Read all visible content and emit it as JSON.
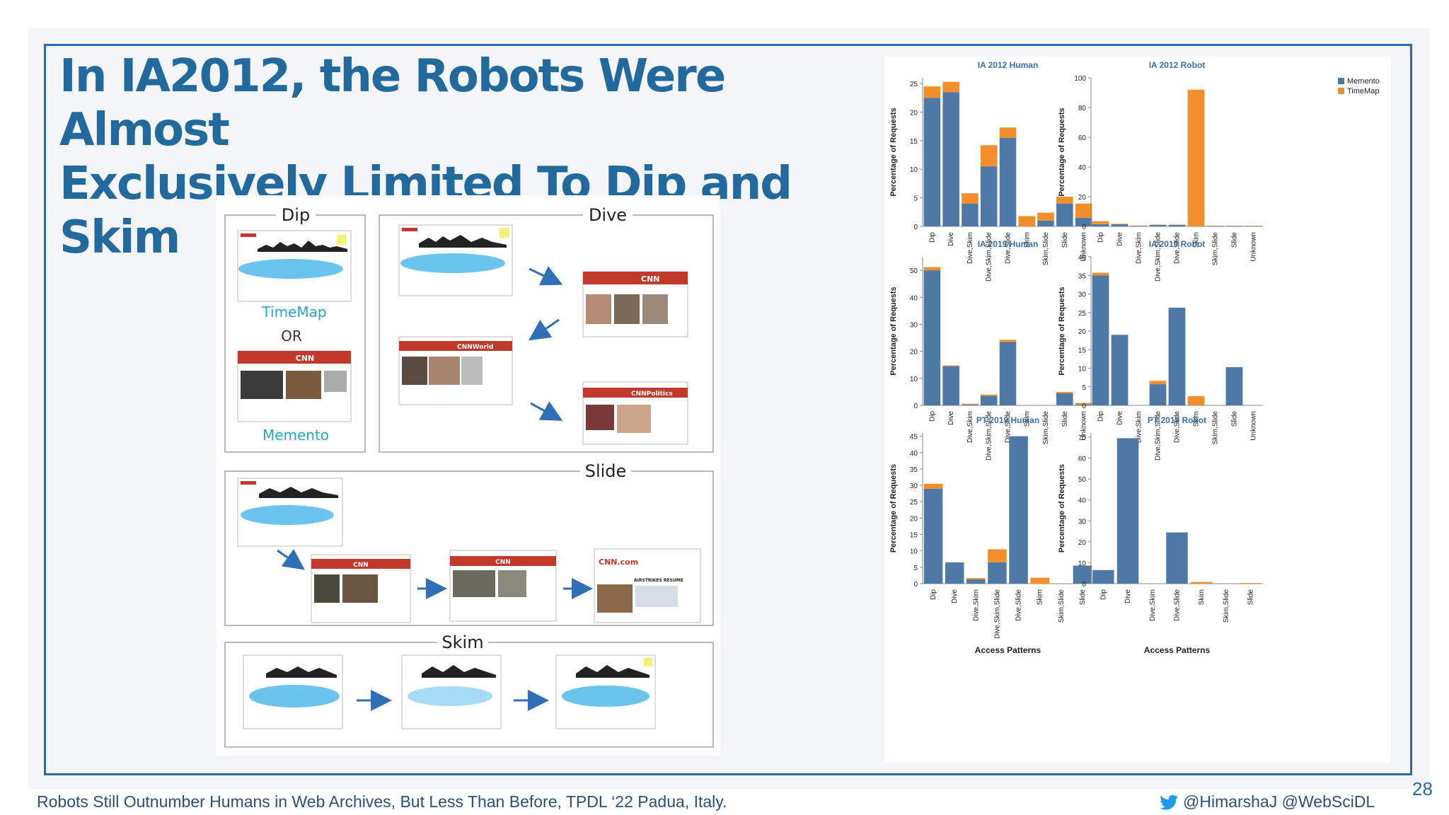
{
  "slide": {
    "title_line1": "In IA2012, the Robots Were Almost",
    "title_line2": "Exclusively Limited To Dip and Skim",
    "footer_left": "Robots Still Outnumber Humans in Web Archives, But Less Than Before, TPDL ‘22 Padua, Italy.",
    "footer_right": "@HimarshaJ @WebSciDL",
    "page_number": "28"
  },
  "diagram": {
    "dip_label": "Dip",
    "dive_label": "Dive",
    "slide_label": "Slide",
    "skim_label": "Skim",
    "timemap_label": "TimeMap",
    "or_label": "OR",
    "memento_label": "Memento",
    "cnn_logo": "CNN",
    "cnn_world": "CNNWorld",
    "cnn_politics": "CNNPolitics",
    "cnn_com": "CNN.com",
    "airstrikes": "AIRSTRIKES RESUME"
  },
  "colors": {
    "memento": "#4e79a7",
    "timemap": "#f28e2b",
    "title": "#226a9e",
    "frame": "#2a6ba5"
  },
  "chart_data": [
    {
      "type": "bar",
      "stacked": true,
      "title": "IA 2012 Human",
      "categories": [
        "Dip",
        "Dive",
        "Dive,Skim",
        "Dive,Skim,Slide",
        "Dive,Slide",
        "Skim",
        "Skim,Slide",
        "Slide",
        "Unknown"
      ],
      "series": [
        {
          "name": "Memento",
          "values": [
            22.5,
            23.5,
            4,
            10.5,
            15.5,
            0,
            1,
            4,
            1.5
          ]
        },
        {
          "name": "TimeMap",
          "values": [
            2,
            1.8,
            1.8,
            3.7,
            1.8,
            1.8,
            1.4,
            1.2,
            2.5
          ]
        }
      ],
      "ylabel": "Percentage of Requests",
      "xlabel": "",
      "ylim": [
        0,
        26
      ],
      "yticks": [
        0,
        5,
        10,
        15,
        20,
        25
      ]
    },
    {
      "type": "bar",
      "stacked": true,
      "title": "IA 2012 Robot",
      "categories": [
        "Dip",
        "Dive",
        "Dive,Skim",
        "Dive,Skim,Slide",
        "Dive,Slide",
        "Skim",
        "Skim,Slide",
        "Slide",
        "Unknown"
      ],
      "series": [
        {
          "name": "Memento",
          "values": [
            1.5,
            1.5,
            0.3,
            1,
            1,
            0,
            0.3,
            0.3,
            0.2
          ]
        },
        {
          "name": "TimeMap",
          "values": [
            2,
            0.3,
            0.3,
            0.2,
            0.2,
            92,
            0.2,
            0.2,
            0.2
          ]
        }
      ],
      "ylabel": "Percentage of Requests",
      "xlabel": "",
      "ylim": [
        0,
        100
      ],
      "yticks": [
        0,
        20,
        40,
        60,
        80,
        100
      ]
    },
    {
      "type": "bar",
      "stacked": true,
      "title": "IA 2019 Human",
      "categories": [
        "Dip",
        "Dive",
        "Dive,Skim",
        "Dive,Skim,Slide",
        "Dive,Slide",
        "Skim",
        "Skim,Slide",
        "Slide",
        "Unknown"
      ],
      "series": [
        {
          "name": "Memento",
          "values": [
            50,
            14.5,
            0.3,
            3.5,
            23.5,
            0,
            0,
            4.5,
            0.3
          ]
        },
        {
          "name": "TimeMap",
          "values": [
            1.2,
            0.3,
            0.3,
            0.5,
            0.8,
            0,
            0,
            0.5,
            0.6
          ]
        }
      ],
      "ylabel": "Percentage of Requests",
      "xlabel": "",
      "ylim": [
        0,
        55
      ],
      "yticks": [
        0,
        10,
        20,
        30,
        40,
        50
      ]
    },
    {
      "type": "bar",
      "stacked": true,
      "title": "IA 2019 Robot",
      "categories": [
        "Dip",
        "Dive",
        "Dive,Skim",
        "Dive,Skim,Slide",
        "Dive,Slide",
        "Skim",
        "Skim,Slide",
        "Slide",
        "Unknown"
      ],
      "series": [
        {
          "name": "Memento",
          "values": [
            35,
            19,
            0,
            5.7,
            26.3,
            0,
            0,
            10.3,
            0
          ]
        },
        {
          "name": "TimeMap",
          "values": [
            0.7,
            0,
            0,
            0.9,
            0,
            2.5,
            0,
            0,
            0
          ]
        }
      ],
      "ylabel": "Percentage of Requests",
      "xlabel": "",
      "ylim": [
        0,
        40
      ],
      "yticks": [
        0,
        5,
        10,
        15,
        20,
        25,
        30,
        35,
        40
      ]
    },
    {
      "type": "bar",
      "stacked": true,
      "title": "PT 2019 Human",
      "categories": [
        "Dip",
        "Dive",
        "Dive,Skim",
        "Dive,Skim,Slide",
        "Dive,Slide",
        "Skim",
        "Skim,Slide",
        "Slide"
      ],
      "series": [
        {
          "name": "Memento",
          "values": [
            29,
            6.5,
            1.3,
            6.5,
            45,
            0,
            0,
            5.5
          ]
        },
        {
          "name": "TimeMap",
          "values": [
            1.5,
            0,
            0.4,
            4,
            0,
            1.8,
            0,
            0
          ]
        }
      ],
      "ylabel": "Percentage of Requests",
      "xlabel": "Access Patterns",
      "ylim": [
        0,
        46
      ],
      "yticks": [
        0,
        5,
        10,
        15,
        20,
        25,
        30,
        35,
        40,
        45
      ]
    },
    {
      "type": "bar",
      "stacked": true,
      "title": "PT 2019 Robot",
      "categories": [
        "Dip",
        "Dive",
        "Dive,Skim",
        "Dive,Slide",
        "Skim",
        "Skim,Slide",
        "Slide"
      ],
      "series": [
        {
          "name": "Memento",
          "values": [
            6.5,
            69.5,
            0,
            24.5,
            0,
            0,
            0
          ]
        },
        {
          "name": "TimeMap",
          "values": [
            0,
            0,
            0,
            0,
            0.8,
            0,
            0.3
          ]
        }
      ],
      "ylabel": "Percentage of Requests",
      "xlabel": "Access Patterns",
      "ylim": [
        0,
        72
      ],
      "yticks": [
        0,
        10,
        20,
        30,
        40,
        50,
        60,
        70
      ]
    }
  ],
  "legend": {
    "items": [
      "Memento",
      "TimeMap"
    ],
    "placement": "top-right"
  }
}
